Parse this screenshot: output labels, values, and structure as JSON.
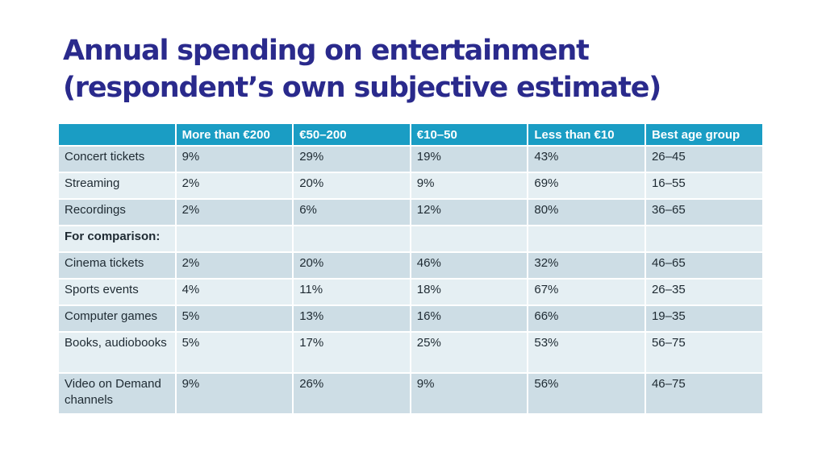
{
  "title": {
    "line1": "Annual spending on entertainment",
    "line2": "(respondent’s own subjective estimate)"
  },
  "table": {
    "headers": [
      "",
      "More than €200",
      "€50–200",
      "€10–50",
      "Less than €10",
      "Best age group"
    ],
    "rows": [
      {
        "label": "Concert tickets",
        "values": [
          "9%",
          "29%",
          "19%",
          "43%",
          "26–45"
        ]
      },
      {
        "label": "Streaming",
        "values": [
          "2%",
          "20%",
          "9%",
          "69%",
          "16–55"
        ]
      },
      {
        "label": "Recordings",
        "values": [
          "2%",
          "6%",
          "12%",
          "80%",
          "36–65"
        ]
      },
      {
        "label": "For comparison:",
        "values": [
          "",
          "",
          "",
          "",
          ""
        ]
      },
      {
        "label": "Cinema tickets",
        "values": [
          "2%",
          "20%",
          "46%",
          "32%",
          "46–65"
        ]
      },
      {
        "label": "Sports events",
        "values": [
          "4%",
          "11%",
          "18%",
          "67%",
          "26–35"
        ]
      },
      {
        "label": "Computer games",
        "values": [
          "5%",
          "13%",
          "16%",
          "66%",
          "19–35"
        ]
      },
      {
        "label": "Books, audiobooks",
        "values": [
          "5%",
          "17%",
          "25%",
          "53%",
          "56–75"
        ]
      },
      {
        "label": "Video on Demand channels",
        "values": [
          "9%",
          "26%",
          "9%",
          "56%",
          "46–75"
        ]
      }
    ]
  },
  "colors": {
    "title": "#2a2a8c",
    "header_bg": "#1a9dc4",
    "row_dark": "#cddde5",
    "row_light": "#e5eff3"
  }
}
